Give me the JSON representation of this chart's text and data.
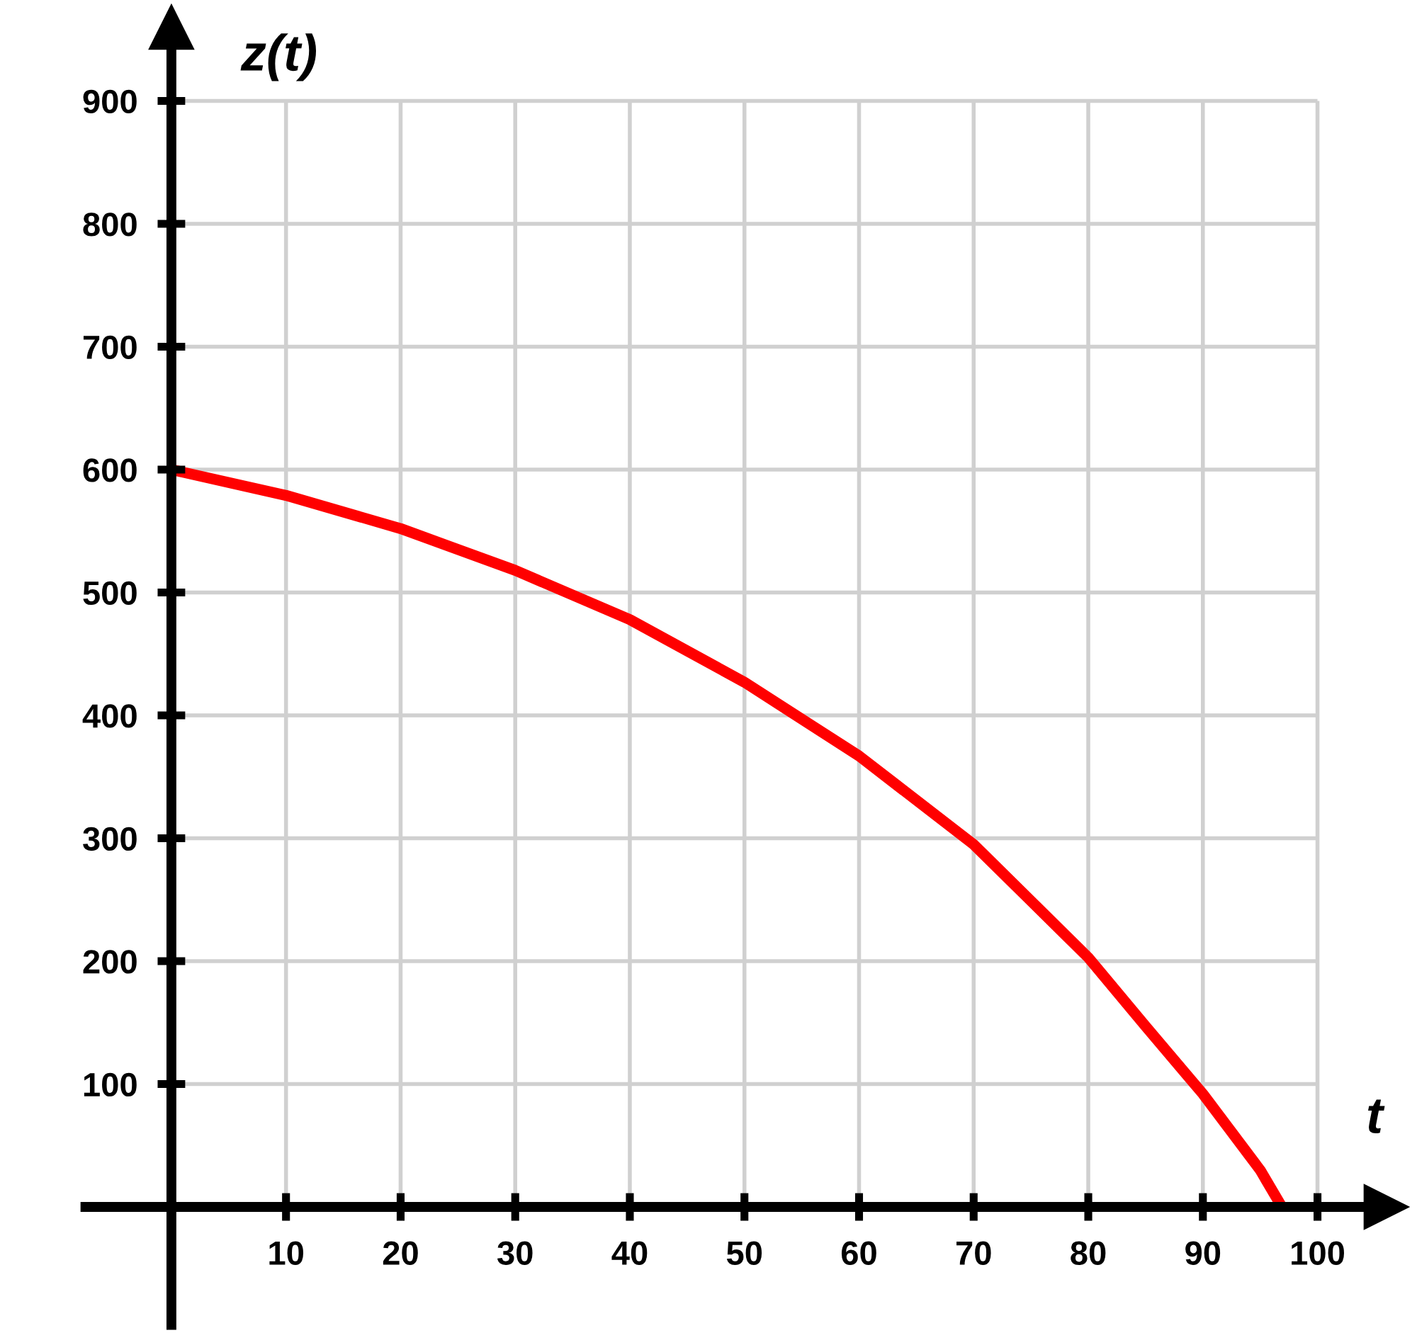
{
  "chart_data": {
    "type": "line",
    "xlabel": "t",
    "ylabel": "z(t)",
    "xlim": [
      -7.5,
      106
    ],
    "ylim": [
      -96,
      960
    ],
    "xticks": [
      10,
      20,
      30,
      40,
      50,
      60,
      70,
      80,
      90,
      100
    ],
    "yticks": [
      100,
      200,
      300,
      400,
      500,
      600,
      700,
      800,
      900
    ],
    "grid": true,
    "marker": "none",
    "line_style": "solid",
    "series": [
      {
        "color": "#ff0000",
        "x": [
          0,
          10,
          20,
          30,
          40,
          50,
          60,
          70,
          80,
          85,
          90,
          95,
          96.9
        ],
        "values": [
          600,
          579,
          552,
          518,
          478,
          427,
          367,
          295,
          203,
          147,
          92,
          30,
          0
        ]
      }
    ]
  }
}
